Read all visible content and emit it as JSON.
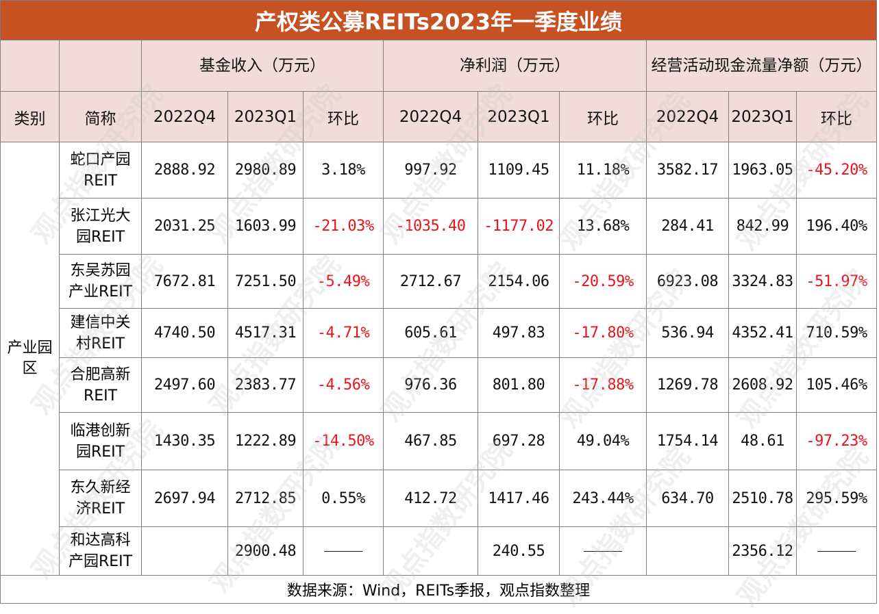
{
  "title": "产权类公募REITs2023年一季度业绩",
  "group_headers": {
    "revenue": "基金收入（万元）",
    "net_profit": "净利润（万元）",
    "cash_flow": "经营活动现金流量净额（万元）"
  },
  "col_headers": {
    "category": "类别",
    "name": "简称",
    "q4": "2022Q4",
    "q1": "2023Q1",
    "qoq": "环比"
  },
  "category": "产业园区",
  "rows": [
    {
      "name": "蛇口产园REIT",
      "rev": [
        "2888.92",
        "2980.89",
        "3.18%"
      ],
      "np": [
        "997.92",
        "1109.45",
        "11.18%"
      ],
      "cf": [
        "3582.17",
        "1963.05",
        "-45.20%"
      ]
    },
    {
      "name": "张江光大园REIT",
      "rev": [
        "2031.25",
        "1603.99",
        "-21.03%"
      ],
      "np": [
        "-1035.40",
        "-1177.02",
        "13.68%"
      ],
      "cf": [
        "284.41",
        "842.99",
        "196.40%"
      ]
    },
    {
      "name": "东吴苏园产业REIT",
      "rev": [
        "7672.81",
        "7251.50",
        "-5.49%"
      ],
      "np": [
        "2712.67",
        "2154.06",
        "-20.59%"
      ],
      "cf": [
        "6923.08",
        "3324.83",
        "-51.97%"
      ]
    },
    {
      "name": "建信中关村REIT",
      "rev": [
        "4740.50",
        "4517.31",
        "-4.71%"
      ],
      "np": [
        "605.61",
        "497.83",
        "-17.80%"
      ],
      "cf": [
        "536.94",
        "4352.41",
        "710.59%"
      ]
    },
    {
      "name": "合肥高新REIT",
      "rev": [
        "2497.60",
        "2383.77",
        "-4.56%"
      ],
      "np": [
        "976.36",
        "801.80",
        "-17.88%"
      ],
      "cf": [
        "1269.78",
        "2608.92",
        "105.46%"
      ]
    },
    {
      "name": "临港创新园REIT",
      "rev": [
        "1430.35",
        "1222.89",
        "-14.50%"
      ],
      "np": [
        "467.85",
        "697.28",
        "49.04%"
      ],
      "cf": [
        "1754.14",
        "48.61",
        "-97.23%"
      ]
    },
    {
      "name": "东久新经济REIT",
      "rev": [
        "2697.94",
        "2712.85",
        "0.55%"
      ],
      "np": [
        "412.72",
        "1417.46",
        "243.44%"
      ],
      "cf": [
        "634.70",
        "2510.78",
        "295.59%"
      ]
    },
    {
      "name": "和达高科产园REIT",
      "rev": [
        "",
        "2900.48",
        "——"
      ],
      "np": [
        "",
        "240.55",
        "——"
      ],
      "cf": [
        "",
        "2356.12",
        "——"
      ]
    }
  ],
  "source": "数据来源：Wind，REITs季报，观点指数整理",
  "watermark": "观点指数研究院",
  "colors": {
    "title_bg": "#c65223",
    "header_bg": "#f2dcdb",
    "negative": "#e8131b"
  }
}
